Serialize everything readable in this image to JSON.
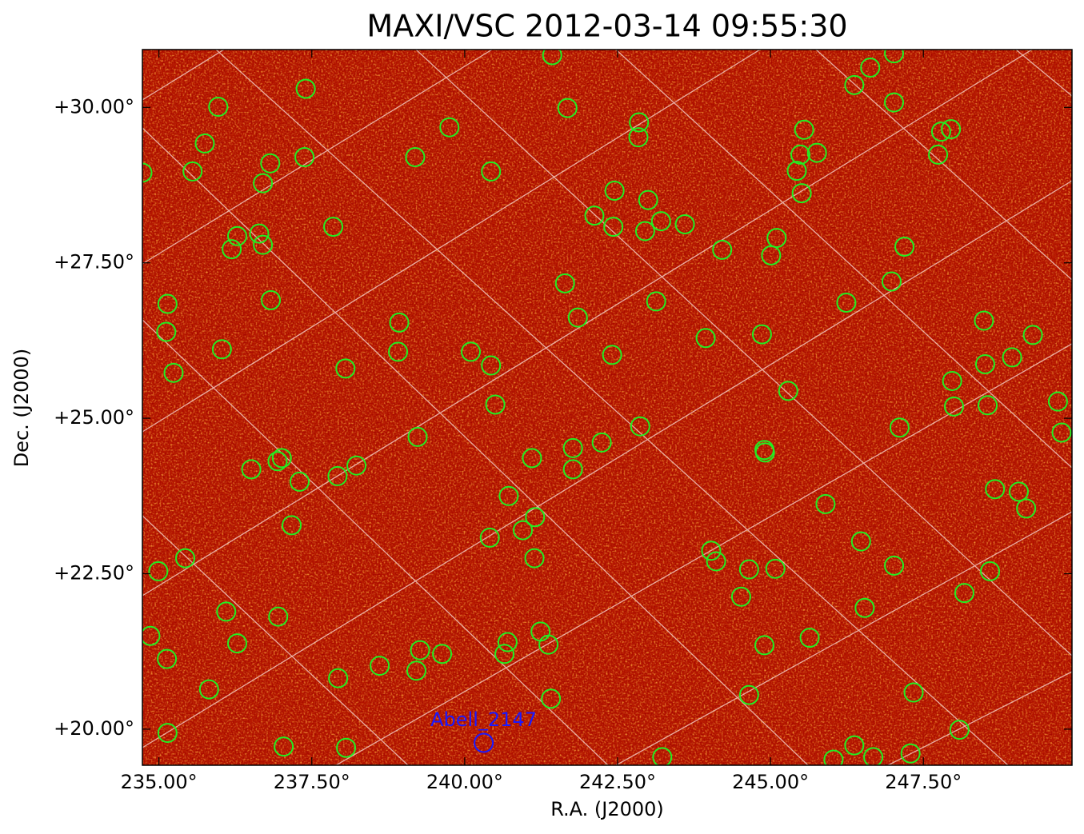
{
  "chart_data": {
    "type": "scatter",
    "title": "MAXI/VSC 2012-03-14 09:55:30",
    "xlabel": "R.A. (J2000)",
    "ylabel": "Dec. (J2000)",
    "xlim": [
      234.73,
      249.93
    ],
    "ylim": [
      19.42,
      30.93
    ],
    "xticks": [
      {
        "value": 235,
        "label": "235.00°"
      },
      {
        "value": 237.5,
        "label": "237.50°"
      },
      {
        "value": 240,
        "label": "240.00°"
      },
      {
        "value": 242.5,
        "label": "242.50°"
      },
      {
        "value": 245,
        "label": "245.00°"
      },
      {
        "value": 247.5,
        "label": "247.50°"
      }
    ],
    "yticks": [
      {
        "value": 20,
        "label": "+20.00°"
      },
      {
        "value": 22.5,
        "label": "+22.50°"
      },
      {
        "value": 25,
        "label": "+25.00°"
      },
      {
        "value": 27.5,
        "label": "+27.50°"
      },
      {
        "value": 30,
        "label": "+30.00°"
      }
    ],
    "series": [
      {
        "color": "#22ee22",
        "x": [
          234.73,
          235.97,
          237.4,
          235.75,
          235.55,
          236.82,
          237.38,
          236.7,
          237.85,
          236.28,
          236.64,
          236.19,
          236.7,
          236.83,
          235.14,
          235.12,
          236.03,
          235.24,
          238.05,
          238.93,
          238.91,
          239.19,
          239.75,
          240.43,
          241.43,
          241.68,
          242.85,
          242.84,
          242.45,
          242.12,
          242.43,
          243.0,
          242.95,
          243.21,
          243.6,
          241.64,
          241.85,
          242.41,
          243.13,
          244.21,
          245.1,
          245.01,
          243.94,
          244.86,
          246.37,
          246.63,
          247.02,
          247.02,
          245.55,
          245.49,
          245.76,
          245.43,
          245.51,
          247.74,
          247.79,
          247.95,
          247.19,
          246.98,
          246.24,
          245.29,
          247.11,
          247.97,
          248.0,
          248.49,
          248.51,
          248.55,
          248.95,
          249.29,
          249.7,
          249.76,
          248.67,
          249.06,
          249.18,
          245.9,
          244.9,
          246.48,
          247.02,
          248.59,
          248.17,
          246.54,
          245.64,
          244.9,
          245.08,
          244.65,
          244.52,
          244.03,
          244.11,
          244.65,
          247.34,
          248.09,
          246.37,
          246.03,
          246.68,
          247.29,
          243.23,
          241.41,
          241.37,
          241.24,
          241.14,
          241.15,
          240.95,
          240.41,
          240.72,
          241.1,
          241.77,
          241.77,
          242.24,
          242.87,
          240.5,
          240.43,
          240.1,
          239.23,
          238.23,
          237.92,
          237.3,
          237.01,
          236.94,
          236.51,
          237.17,
          235.43,
          234.99,
          236.1,
          236.95,
          236.28,
          234.86,
          235.13,
          235.82,
          235.14,
          237.04,
          238.06,
          237.93,
          238.61,
          239.21,
          239.27,
          239.63,
          240.65,
          240.7,
          244.91
        ],
        "y": [
          28.95,
          30.01,
          30.3,
          29.42,
          28.97,
          29.1,
          29.2,
          28.78,
          28.08,
          27.93,
          27.97,
          27.72,
          27.79,
          26.9,
          26.84,
          26.39,
          26.11,
          25.73,
          25.8,
          26.54,
          26.07,
          29.2,
          29.68,
          28.97,
          30.84,
          29.99,
          29.76,
          29.52,
          28.66,
          28.26,
          28.08,
          28.51,
          28.01,
          28.17,
          28.12,
          27.17,
          26.62,
          26.02,
          26.88,
          27.71,
          27.9,
          27.62,
          26.29,
          26.35,
          30.36,
          30.64,
          30.87,
          30.08,
          29.64,
          29.24,
          29.27,
          28.98,
          28.62,
          29.24,
          29.61,
          29.65,
          27.76,
          27.2,
          26.86,
          25.44,
          24.85,
          25.6,
          25.19,
          26.57,
          25.87,
          25.21,
          25.98,
          26.34,
          25.27,
          24.77,
          23.86,
          23.82,
          23.55,
          23.62,
          24.49,
          23.02,
          22.63,
          22.54,
          22.19,
          21.95,
          21.47,
          21.35,
          22.58,
          22.57,
          22.13,
          22.87,
          22.7,
          20.55,
          20.59,
          19.99,
          19.74,
          19.51,
          19.55,
          19.61,
          19.55,
          20.49,
          21.36,
          21.57,
          22.75,
          23.41,
          23.2,
          23.08,
          23.75,
          24.36,
          24.52,
          24.18,
          24.61,
          24.87,
          25.22,
          25.85,
          26.07,
          24.7,
          24.24,
          24.07,
          23.98,
          24.36,
          24.31,
          24.18,
          23.28,
          22.75,
          22.54,
          21.89,
          21.81,
          21.38,
          21.5,
          21.13,
          20.64,
          19.94,
          19.72,
          19.7,
          20.82,
          21.02,
          20.94,
          21.27,
          21.21,
          21.21,
          21.4,
          24.45
        ]
      },
      {
        "color": "#1a1aff",
        "x": [
          240.31
        ],
        "y": [
          19.78
        ]
      }
    ],
    "annotations": [
      {
        "text": "Abell_2147"
      }
    ]
  }
}
